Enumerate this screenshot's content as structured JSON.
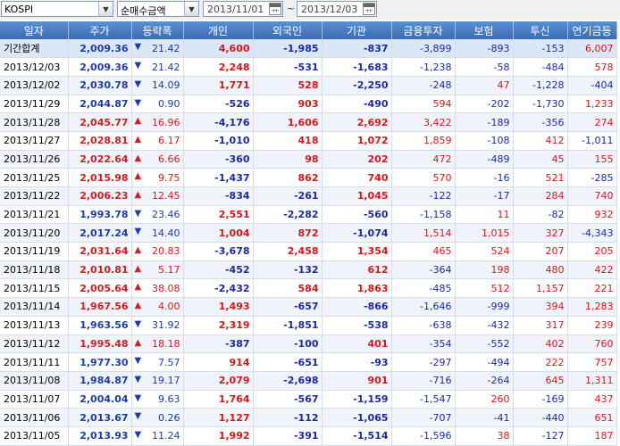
{
  "toolbar": {
    "market": "KOSPI",
    "metric": "순매수금액",
    "date_from": "2013/11/01",
    "date_to": "2013/12/03",
    "separator": "~"
  },
  "columns": [
    "일자",
    "주가",
    "등락폭",
    "개인",
    "외국인",
    "기관",
    "금융투자",
    "보험",
    "투신",
    "연기금등"
  ],
  "rows": [
    [
      "기간합계",
      "2,009.36",
      "down",
      "21.42",
      "4,600",
      "-1,985",
      "-837",
      "-3,899",
      "-893",
      "-153",
      "6,007"
    ],
    [
      "2013/12/03",
      "2,009.36",
      "down",
      "21.42",
      "2,248",
      "-531",
      "-1,683",
      "-1,238",
      "-58",
      "-484",
      "578"
    ],
    [
      "2013/12/02",
      "2,030.78",
      "down",
      "14.09",
      "1,771",
      "528",
      "-2,250",
      "-248",
      "47",
      "-1,228",
      "-404"
    ],
    [
      "2013/11/29",
      "2,044.87",
      "down",
      "0.90",
      "-526",
      "903",
      "-490",
      "594",
      "-202",
      "-1,730",
      "1,233"
    ],
    [
      "2013/11/28",
      "2,045.77",
      "up",
      "16.96",
      "-4,176",
      "1,606",
      "2,692",
      "3,422",
      "-189",
      "-356",
      "274"
    ],
    [
      "2013/11/27",
      "2,028.81",
      "up",
      "6.17",
      "-1,010",
      "418",
      "1,072",
      "1,859",
      "-108",
      "412",
      "-1,011"
    ],
    [
      "2013/11/26",
      "2,022.64",
      "up",
      "6.66",
      "-360",
      "98",
      "202",
      "472",
      "-489",
      "45",
      "155"
    ],
    [
      "2013/11/25",
      "2,015.98",
      "up",
      "9.75",
      "-1,437",
      "862",
      "740",
      "570",
      "-16",
      "521",
      "-285"
    ],
    [
      "2013/11/22",
      "2,006.23",
      "up",
      "12.45",
      "-834",
      "-261",
      "1,045",
      "-122",
      "-17",
      "284",
      "740"
    ],
    [
      "2013/11/21",
      "1,993.78",
      "down",
      "23.46",
      "2,551",
      "-2,282",
      "-560",
      "-1,158",
      "11",
      "-82",
      "932"
    ],
    [
      "2013/11/20",
      "2,017.24",
      "down",
      "14.40",
      "1,004",
      "872",
      "-1,074",
      "1,514",
      "1,015",
      "327",
      "-4,343"
    ],
    [
      "2013/11/19",
      "2,031.64",
      "up",
      "20.83",
      "-3,678",
      "2,458",
      "1,354",
      "465",
      "524",
      "207",
      "205"
    ],
    [
      "2013/11/18",
      "2,010.81",
      "up",
      "5.17",
      "-452",
      "-132",
      "612",
      "-364",
      "198",
      "480",
      "422"
    ],
    [
      "2013/11/15",
      "2,005.64",
      "up",
      "38.08",
      "-2,432",
      "584",
      "1,863",
      "-485",
      "512",
      "1,157",
      "221"
    ],
    [
      "2013/11/14",
      "1,967.56",
      "up",
      "4.00",
      "1,493",
      "-657",
      "-866",
      "-1,646",
      "-999",
      "394",
      "1,283"
    ],
    [
      "2013/11/13",
      "1,963.56",
      "down",
      "31.92",
      "2,319",
      "-1,851",
      "-538",
      "-638",
      "-432",
      "317",
      "239"
    ],
    [
      "2013/11/12",
      "1,995.48",
      "up",
      "18.18",
      "-387",
      "-100",
      "401",
      "-354",
      "-552",
      "402",
      "760"
    ],
    [
      "2013/11/11",
      "1,977.30",
      "down",
      "7.57",
      "914",
      "-651",
      "-93",
      "-297",
      "-494",
      "222",
      "757"
    ],
    [
      "2013/11/08",
      "1,984.87",
      "down",
      "19.17",
      "2,079",
      "-2,698",
      "901",
      "-716",
      "-264",
      "645",
      "1,311"
    ],
    [
      "2013/11/07",
      "2,004.04",
      "down",
      "9.63",
      "1,764",
      "-567",
      "-1,159",
      "-1,547",
      "260",
      "-169",
      "437"
    ],
    [
      "2013/11/06",
      "2,013.67",
      "down",
      "0.26",
      "1,127",
      "-112",
      "-1,065",
      "-707",
      "-41",
      "-440",
      "651"
    ],
    [
      "2013/11/05",
      "2,013.93",
      "down",
      "11.24",
      "1,992",
      "-391",
      "-1,514",
      "-1,596",
      "38",
      "-127",
      "187"
    ]
  ],
  "colors": {
    "header": "#3a6cb5",
    "up": "#d01d1d",
    "down": "#1a3ca8",
    "positive": "#d41818",
    "negative": "#1a2aa6"
  },
  "icons": {
    "up": "▲",
    "down": "▼",
    "dropdown": "▼"
  }
}
